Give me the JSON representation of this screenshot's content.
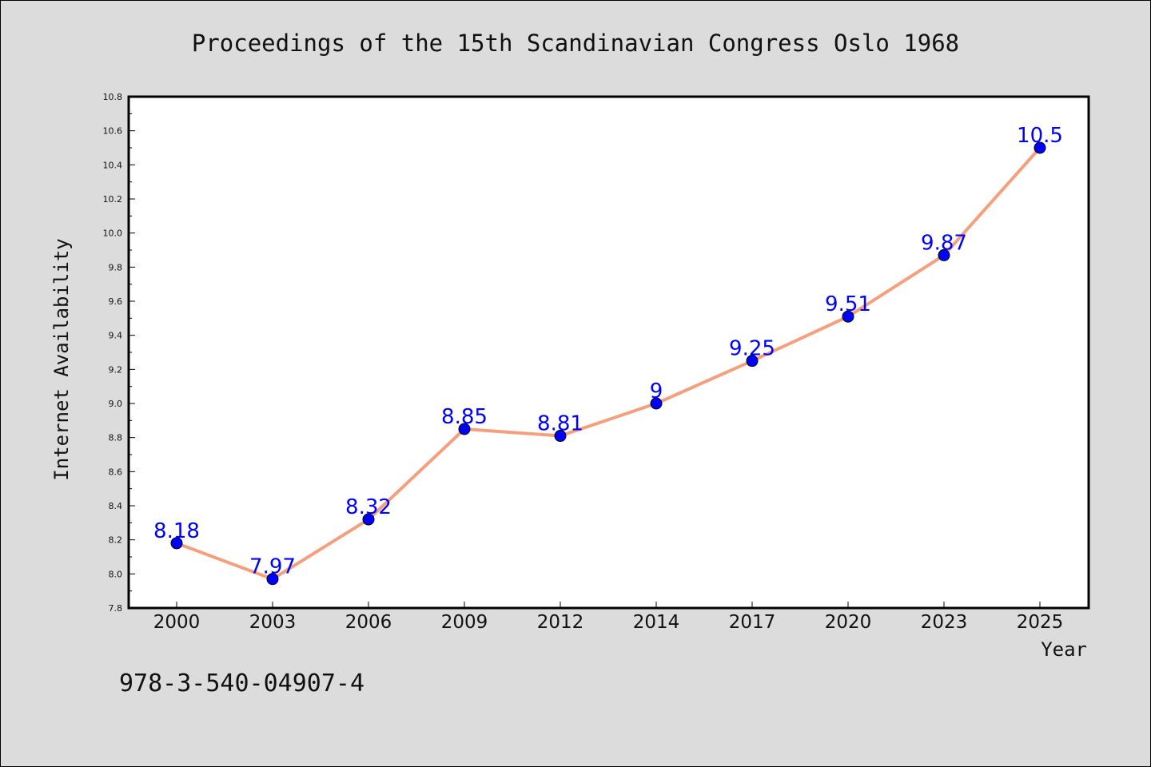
{
  "chart_data": {
    "type": "line",
    "title": "Proceedings of the 15th Scandinavian Congress Oslo 1968",
    "xlabel": "Year",
    "ylabel": "Internet Availability",
    "categories": [
      "2000",
      "2003",
      "2006",
      "2009",
      "2012",
      "2014",
      "2017",
      "2020",
      "2023",
      "2025"
    ],
    "values": [
      8.18,
      7.97,
      8.32,
      8.85,
      8.81,
      9.0,
      9.25,
      9.51,
      9.87,
      10.5
    ],
    "data_labels": [
      "8.18",
      "7.97",
      "8.32",
      "8.85",
      "8.81",
      "9",
      "9.25",
      "9.51",
      "9.87",
      "10.5"
    ],
    "ylim": [
      7.8,
      10.8
    ],
    "yticks": [
      "7.8",
      "8.0",
      "8.2",
      "8.4",
      "8.6",
      "8.8",
      "9.0",
      "9.2",
      "9.4",
      "9.6",
      "9.8",
      "10.0",
      "10.2",
      "10.4",
      "10.6",
      "10.8"
    ],
    "grid": false,
    "line_color": "#f4a07e",
    "marker_color": "#0000ff",
    "label_color": "#0000ff"
  },
  "footer": {
    "isbn": "978-3-540-04907-4"
  }
}
